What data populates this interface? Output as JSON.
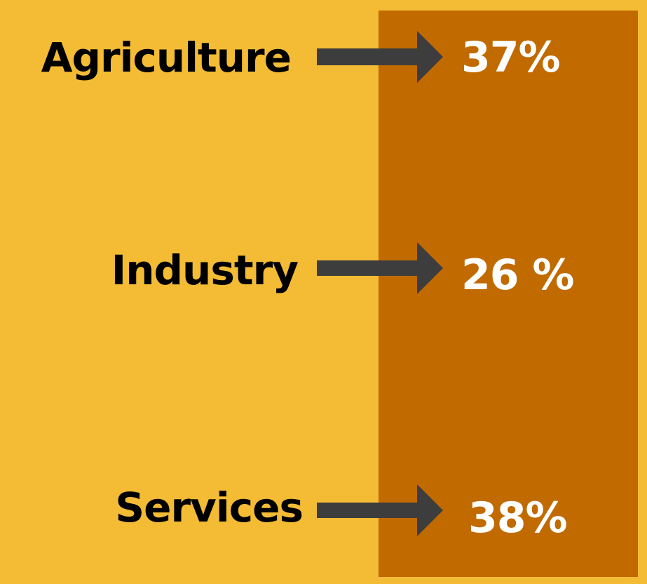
{
  "items": [
    {
      "label": "Agriculture",
      "value": "37%"
    },
    {
      "label": "Industry",
      "value": "26 %"
    },
    {
      "label": "Services",
      "value": "38%"
    }
  ]
}
